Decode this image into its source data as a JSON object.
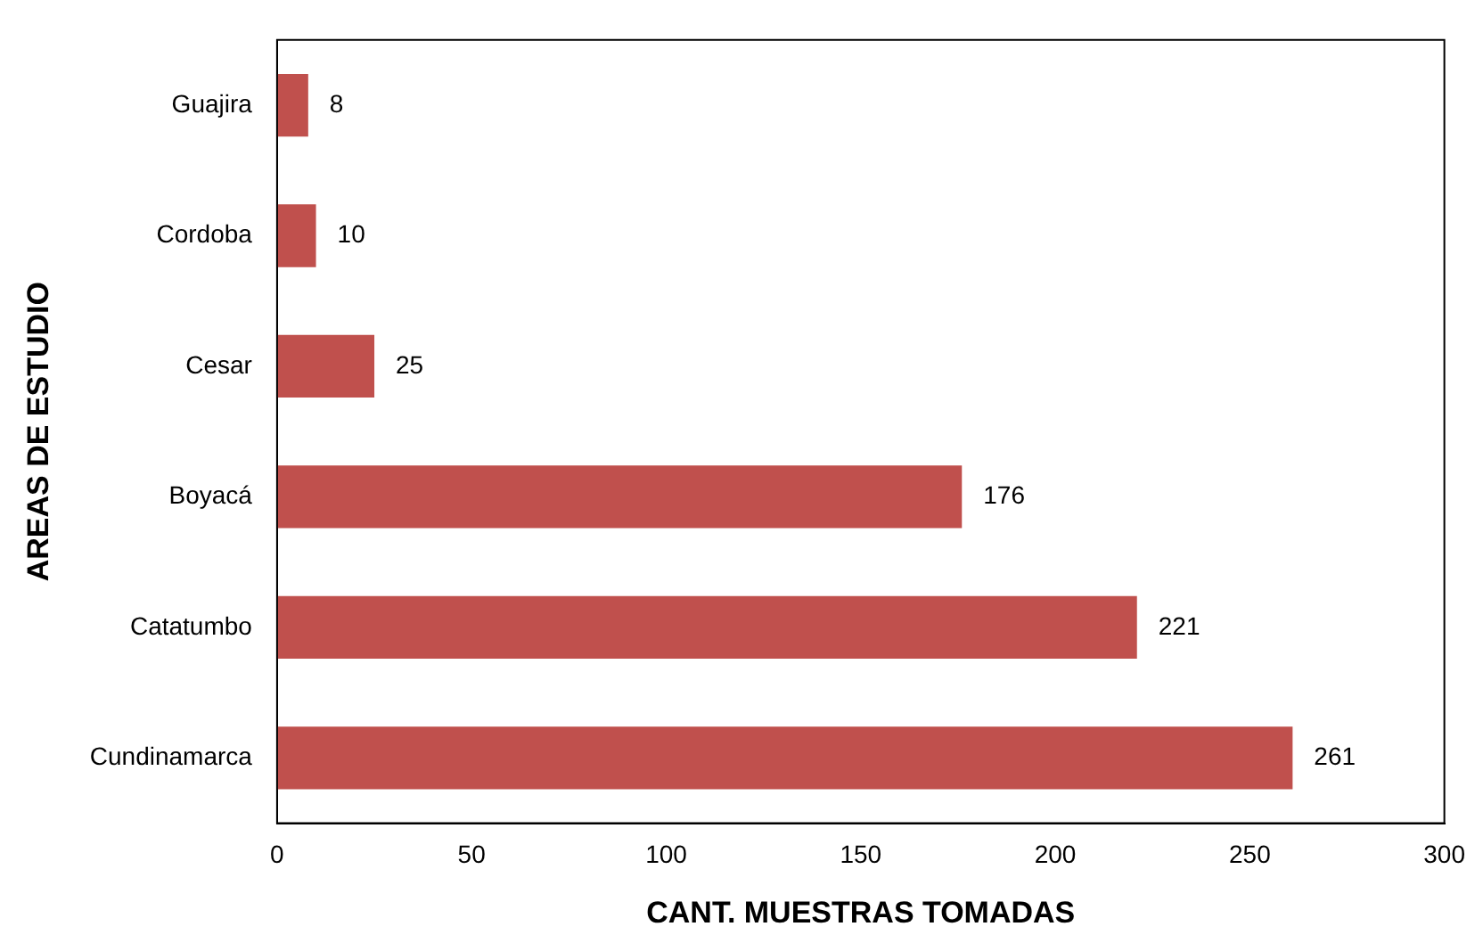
{
  "chart_data": {
    "type": "bar",
    "orientation": "horizontal",
    "xlabel": "CANT. MUESTRAS TOMADAS",
    "ylabel": "AREAS DE ESTUDIO",
    "categories": [
      "Guajira",
      "Cordoba",
      "Cesar",
      "Boyacá",
      "Catatumbo",
      "Cundinamarca"
    ],
    "values": [
      8,
      10,
      25,
      176,
      221,
      261
    ],
    "color": "#c0504d",
    "xlim": [
      0,
      300
    ],
    "xticks": [
      0,
      50,
      100,
      150,
      200,
      250,
      300
    ],
    "grid": false,
    "legend": false,
    "data_labels": true
  }
}
